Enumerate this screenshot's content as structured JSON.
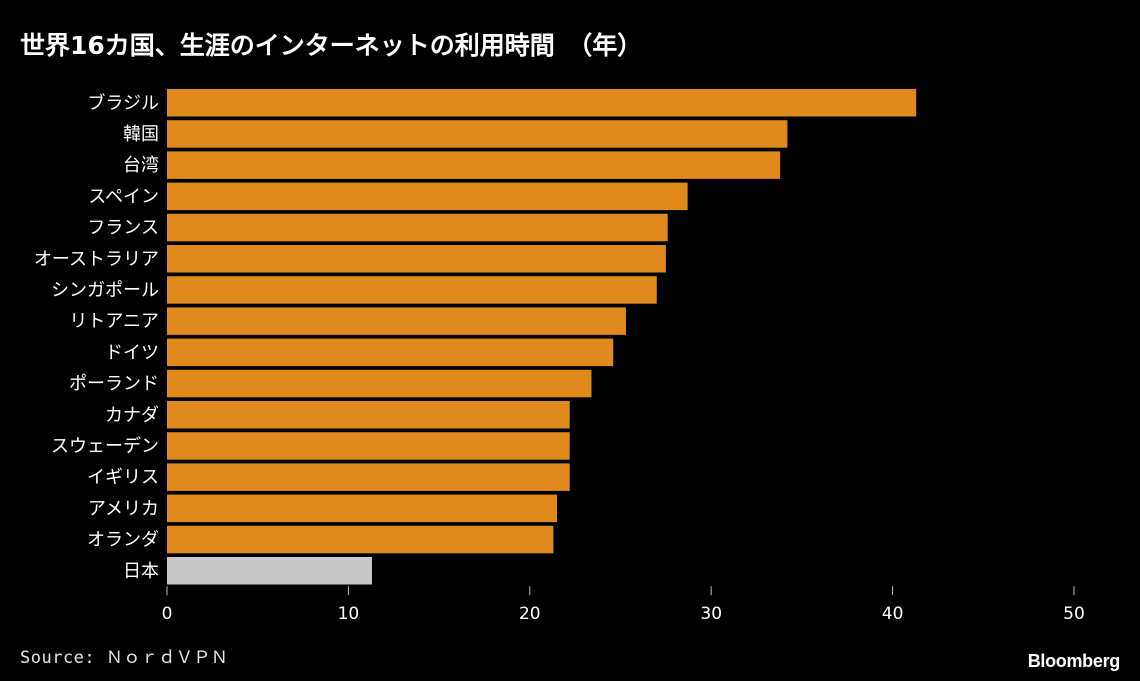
{
  "title": "世界16カ国、生涯のインターネットの利用時間　（年）",
  "source": "Source: ＮｏｒｄＶＰＮ",
  "brand": "Bloomberg",
  "colors": {
    "bar": "#E08A1E",
    "highlight": "#C8C8C8",
    "text": "#FFFFFF",
    "background": "#000000"
  },
  "chart_data": {
    "type": "bar",
    "orientation": "horizontal",
    "categories": [
      "ブラジル",
      "韓国",
      "台湾",
      "スペイン",
      "フランス",
      "オーストラリア",
      "シンガポール",
      "リトアニア",
      "ドイツ",
      "ポーランド",
      "カナダ",
      "スウェーデン",
      "イギリス",
      "アメリカ",
      "オランダ",
      "日本"
    ],
    "values": [
      41.3,
      34.2,
      33.8,
      28.7,
      27.6,
      27.5,
      27.0,
      25.3,
      24.6,
      23.4,
      22.2,
      22.2,
      22.2,
      21.5,
      21.3,
      11.3
    ],
    "highlight": "日本",
    "xlim": [
      0,
      50
    ],
    "xticks": [
      0,
      10,
      20,
      30,
      40,
      50
    ],
    "grid": false,
    "legend": "none"
  }
}
